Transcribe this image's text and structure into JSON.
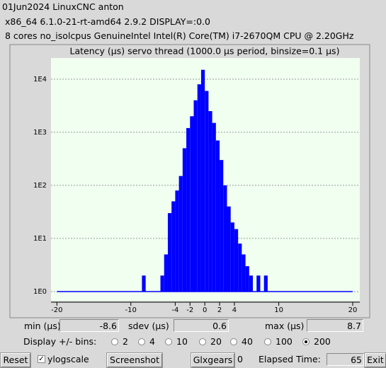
{
  "header": {
    "lines": [
      "01Jun2024 LinuxCNC anton",
      "x86_64  6.1.0-21-rt-amd64  2.9.2  DISPLAY=:0.0",
      "8 cores  no_isolcpus   GenuineIntel  Intel(R) Core(TM) i7-2670QM CPU @ 2.20GHz"
    ]
  },
  "chart_data": {
    "type": "histogram",
    "title": "Latency (µs) servo thread (1000.0 µs period, binsize=0.1 µs)",
    "bins": [
      -9,
      -8.5,
      -8,
      -7.5,
      -7,
      -6.5,
      -6,
      -5.5,
      -5,
      -4.5,
      -4,
      -3.5,
      -3,
      -2.5,
      -2,
      -1.5,
      -1,
      -0.5,
      0,
      0.5,
      1,
      1.5,
      2,
      2.5,
      3,
      3.5,
      4,
      4.5,
      5,
      5.5,
      6,
      6.5,
      7,
      7.5,
      8,
      8.5,
      9
    ],
    "counts": [
      0,
      2,
      0,
      0,
      0,
      1,
      2,
      5,
      30,
      50,
      80,
      150,
      500,
      1200,
      2000,
      4000,
      8000,
      15000,
      6000,
      2500,
      1500,
      700,
      300,
      100,
      40,
      20,
      15,
      8,
      5,
      3,
      2,
      1,
      2,
      1,
      2,
      0
    ],
    "color": "#0000ff",
    "background": "#f0fff0",
    "log_y": true,
    "grid": true,
    "xlim": [
      -20.8,
      20.96
    ],
    "xticks": [
      -20,
      -10,
      -4,
      -2,
      0,
      2,
      4,
      10,
      20
    ],
    "ylim": [
      0.67,
      25000
    ],
    "yticks": [
      {
        "value": 1,
        "label": "1E0"
      },
      {
        "value": 10,
        "label": "1E1"
      },
      {
        "value": 100,
        "label": "1E2"
      },
      {
        "value": 1000,
        "label": "1E3"
      },
      {
        "value": 10000,
        "label": "1E4"
      }
    ]
  },
  "stats": [
    {
      "label": "min (µs)",
      "value": -8.6
    },
    {
      "label": "sdev (µs)",
      "value": 0.6
    },
    {
      "label": "max (µs)",
      "value": 8.7
    }
  ],
  "bins_control": {
    "label": "Display +/- bins:",
    "options": [
      2,
      4,
      10,
      20,
      40,
      100,
      200
    ],
    "selected": 6
  },
  "footer": {
    "reset": "Reset",
    "ylogscale": "ylogscale",
    "ylogscale_checked": true,
    "screenshot": "Screenshot",
    "glxgears": "Glxgears",
    "glxgears_count": 0,
    "elapsed_label": "Elapsed Time:",
    "elapsed": 65,
    "exit": "Exit"
  }
}
